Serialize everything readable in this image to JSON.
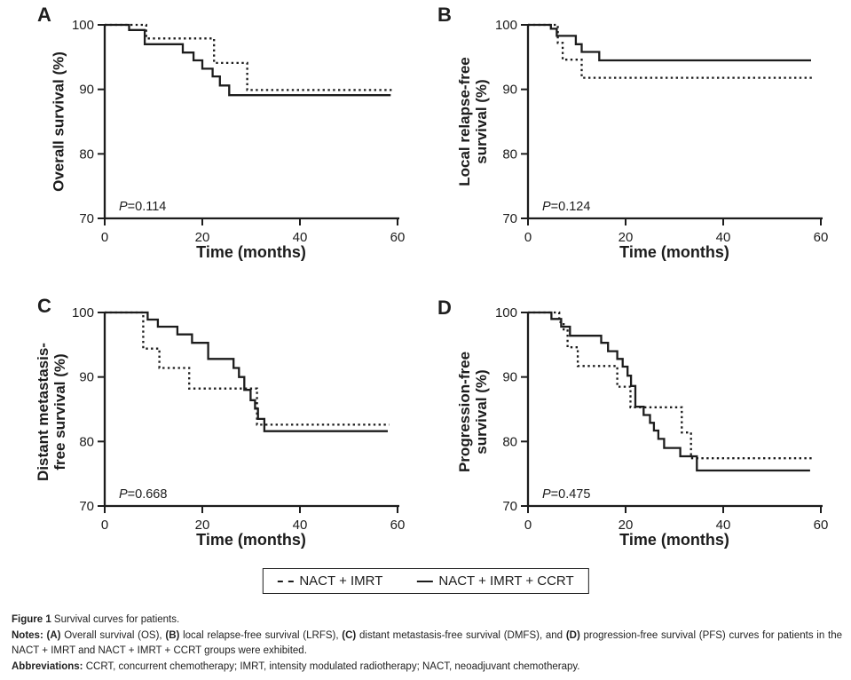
{
  "colors": {
    "line": "#1c1c1c",
    "background": "#ffffff"
  },
  "legend": {
    "items": [
      {
        "label": "NACT + IMRT",
        "style": "dotted"
      },
      {
        "label": "NACT + IMRT + CCRT",
        "style": "solid"
      }
    ]
  },
  "caption": {
    "title": [
      {
        "t": "Figure 1",
        "b": 1
      },
      {
        "t": " Survival curves for patients.",
        "b": 0
      }
    ],
    "notes": [
      {
        "t": "Notes:",
        "b": 1
      },
      {
        "t": " ",
        "b": 0
      },
      {
        "t": "(A)",
        "b": 1
      },
      {
        "t": " Overall survival (OS), ",
        "b": 0
      },
      {
        "t": "(B)",
        "b": 1
      },
      {
        "t": " local relapse-free survival (LRFS), ",
        "b": 0
      },
      {
        "t": "(C)",
        "b": 1
      },
      {
        "t": " distant metastasis-free survival (DMFS), and ",
        "b": 0
      },
      {
        "t": "(D)",
        "b": 1
      },
      {
        "t": " progression-free survival (PFS) curves for patients in the NACT + IMRT and NACT + IMRT + CCRT groups were exhibited.",
        "b": 0
      }
    ],
    "abbreviations": [
      {
        "t": "Abbreviations:",
        "b": 1
      },
      {
        "t": " CCRT, concurrent chemotherapy; IMRT, intensity modulated radiotherapy; NACT, neoadjuvant chemotherapy.",
        "b": 0
      }
    ]
  },
  "chart_data": [
    {
      "type": "line",
      "step": true,
      "letter": "A",
      "ylabel": "Overall survival (%)",
      "xlabel": "Time (months)",
      "p_value": "P=0.114",
      "xlim": [
        0,
        60
      ],
      "ylim": [
        70,
        100
      ],
      "xticks": [
        0,
        20,
        40,
        60
      ],
      "yticks": [
        70,
        80,
        90,
        100
      ],
      "series": [
        {
          "name": "NACT + IMRT",
          "style": "dotted",
          "points": [
            [
              0,
              100
            ],
            [
              8.5,
              100
            ],
            [
              8.5,
              97.9
            ],
            [
              22.4,
              97.9
            ],
            [
              22.4,
              94.1
            ],
            [
              29.2,
              94.1
            ],
            [
              29.2,
              89.9
            ],
            [
              59,
              89.9
            ]
          ]
        },
        {
          "name": "NACT + IMRT + CCRT",
          "style": "solid",
          "points": [
            [
              0,
              100
            ],
            [
              5,
              100
            ],
            [
              5,
              99.2
            ],
            [
              8.2,
              99.2
            ],
            [
              8.2,
              97
            ],
            [
              16,
              97
            ],
            [
              16,
              95.7
            ],
            [
              18.2,
              95.7
            ],
            [
              18.2,
              94.5
            ],
            [
              20,
              94.5
            ],
            [
              20,
              93.2
            ],
            [
              22.1,
              93.2
            ],
            [
              22.1,
              92
            ],
            [
              23.6,
              92
            ],
            [
              23.6,
              90.6
            ],
            [
              25.5,
              90.6
            ],
            [
              25.5,
              89.1
            ],
            [
              58.6,
              89.1
            ]
          ]
        }
      ]
    },
    {
      "type": "line",
      "step": true,
      "letter": "B",
      "ylabel": "Local relapse-free\nsurvival (%)",
      "xlabel": "Time (months)",
      "p_value": "P=0.124",
      "xlim": [
        0,
        60
      ],
      "ylim": [
        70,
        100
      ],
      "xticks": [
        0,
        20,
        40,
        60
      ],
      "yticks": [
        70,
        80,
        90,
        100
      ],
      "series": [
        {
          "name": "NACT + IMRT",
          "style": "dotted",
          "points": [
            [
              0,
              100
            ],
            [
              6.1,
              100
            ],
            [
              6.1,
              97.2
            ],
            [
              7.1,
              97.2
            ],
            [
              7.1,
              94.6
            ],
            [
              11,
              94.6
            ],
            [
              11,
              91.8
            ],
            [
              58.2,
              91.8
            ]
          ]
        },
        {
          "name": "NACT + IMRT + CCRT",
          "style": "solid",
          "points": [
            [
              0,
              100
            ],
            [
              4.7,
              100
            ],
            [
              4.7,
              99.4
            ],
            [
              5.9,
              99.4
            ],
            [
              5.9,
              98.3
            ],
            [
              9.8,
              98.3
            ],
            [
              9.8,
              97
            ],
            [
              11,
              97
            ],
            [
              11,
              95.8
            ],
            [
              14.6,
              95.8
            ],
            [
              14.6,
              94.5
            ],
            [
              58,
              94.5
            ]
          ]
        }
      ]
    },
    {
      "type": "line",
      "step": true,
      "letter": "C",
      "ylabel": "Distant metastasis-\nfree survival (%)",
      "xlabel": "Time (months)",
      "p_value": "P=0.668",
      "xlim": [
        0,
        60
      ],
      "ylim": [
        70,
        100
      ],
      "xticks": [
        0,
        20,
        40,
        60
      ],
      "yticks": [
        70,
        80,
        90,
        100
      ],
      "series": [
        {
          "name": "NACT + IMRT",
          "style": "dotted",
          "points": [
            [
              0,
              100
            ],
            [
              7.9,
              100
            ],
            [
              7.9,
              94.4
            ],
            [
              11.2,
              94.4
            ],
            [
              11.2,
              91.4
            ],
            [
              17.3,
              91.4
            ],
            [
              17.3,
              88.2
            ],
            [
              31.2,
              88.2
            ],
            [
              31.2,
              82.6
            ],
            [
              58.3,
              82.6
            ]
          ]
        },
        {
          "name": "NACT + IMRT + CCRT",
          "style": "solid",
          "points": [
            [
              0,
              100
            ],
            [
              8.8,
              100
            ],
            [
              8.8,
              98.9
            ],
            [
              10.9,
              98.9
            ],
            [
              10.9,
              97.8
            ],
            [
              14.9,
              97.8
            ],
            [
              14.9,
              96.6
            ],
            [
              17.9,
              96.6
            ],
            [
              17.9,
              95.3
            ],
            [
              21.2,
              95.3
            ],
            [
              21.2,
              92.8
            ],
            [
              26.4,
              92.8
            ],
            [
              26.4,
              91.4
            ],
            [
              27.5,
              91.4
            ],
            [
              27.5,
              90
            ],
            [
              28.6,
              90
            ],
            [
              28.6,
              88
            ],
            [
              29.9,
              88
            ],
            [
              29.9,
              86.4
            ],
            [
              30.8,
              86.4
            ],
            [
              30.8,
              85.1
            ],
            [
              31.4,
              85.1
            ],
            [
              31.4,
              83.5
            ],
            [
              32.7,
              83.5
            ],
            [
              32.7,
              81.6
            ],
            [
              58,
              81.6
            ]
          ]
        }
      ]
    },
    {
      "type": "line",
      "step": true,
      "letter": "D",
      "ylabel": "Progression-free\nsurvival (%)",
      "xlabel": "Time (months)",
      "p_value": "P=0.475",
      "xlim": [
        0,
        60
      ],
      "ylim": [
        70,
        100
      ],
      "xticks": [
        0,
        20,
        40,
        60
      ],
      "yticks": [
        70,
        80,
        90,
        100
      ],
      "series": [
        {
          "name": "NACT + IMRT",
          "style": "dotted",
          "points": [
            [
              0,
              100
            ],
            [
              6.4,
              100
            ],
            [
              6.4,
              98.5
            ],
            [
              7.3,
              98.5
            ],
            [
              7.3,
              97.2
            ],
            [
              8.1,
              97.2
            ],
            [
              8.1,
              94.6
            ],
            [
              10.2,
              94.6
            ],
            [
              10.2,
              91.7
            ],
            [
              18.3,
              91.7
            ],
            [
              18.3,
              88.5
            ],
            [
              21,
              88.5
            ],
            [
              21,
              85.3
            ],
            [
              31.5,
              85.3
            ],
            [
              31.5,
              81.4
            ],
            [
              33.4,
              81.4
            ],
            [
              33.4,
              77.4
            ],
            [
              58.2,
              77.4
            ]
          ]
        },
        {
          "name": "NACT + IMRT + CCRT",
          "style": "solid",
          "points": [
            [
              0,
              100
            ],
            [
              4.8,
              100
            ],
            [
              4.8,
              99
            ],
            [
              6.8,
              99
            ],
            [
              6.8,
              97.8
            ],
            [
              8.6,
              97.8
            ],
            [
              8.6,
              96.4
            ],
            [
              15,
              96.4
            ],
            [
              15,
              95.3
            ],
            [
              16.4,
              95.3
            ],
            [
              16.4,
              94
            ],
            [
              18.3,
              94
            ],
            [
              18.3,
              92.8
            ],
            [
              19.4,
              92.8
            ],
            [
              19.4,
              91.6
            ],
            [
              20.4,
              91.6
            ],
            [
              20.4,
              90.2
            ],
            [
              21.1,
              90.2
            ],
            [
              21.1,
              88.6
            ],
            [
              22,
              88.6
            ],
            [
              22,
              85.4
            ],
            [
              23.7,
              85.4
            ],
            [
              23.7,
              84.1
            ],
            [
              25,
              84.1
            ],
            [
              25,
              82.9
            ],
            [
              25.8,
              82.9
            ],
            [
              25.8,
              81.7
            ],
            [
              26.7,
              81.7
            ],
            [
              26.7,
              80.4
            ],
            [
              27.9,
              80.4
            ],
            [
              27.9,
              79
            ],
            [
              31.2,
              79
            ],
            [
              31.2,
              77.7
            ],
            [
              34.6,
              77.7
            ],
            [
              34.6,
              75.5
            ],
            [
              57.8,
              75.5
            ]
          ]
        }
      ]
    }
  ]
}
